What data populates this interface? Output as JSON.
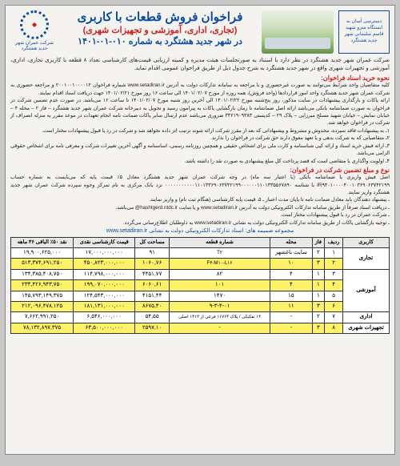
{
  "header": {
    "metro_access": "دسترسی آسان به ایستگاه مترو شهید قاسم سلیمانی شهر جدید هشتگرد",
    "title_main": "فراخوان فروش قطعات با کاربری",
    "title_sub": "(تجاری، اداری، آموزشی و تجهیزات شهری)",
    "title_loc": "در شهر جدید هشتگرد به شماره ۰۱۰-۰۱-۱۴۰۱",
    "logo_text": "شرکت عمران شهر جدید هشتگرد"
  },
  "intro": "شرکت عمران شهر جدید هشتگرد در نظر دارد با استناد به صورتجلسات هیئت مدیره و کمیته ارزیابی قیمت‌های کارشناسی تعداد ۸ قطعه با کاربری تجاری، اداری، آموزشی و تجهیزات شهری واقع در شهر جدید هشتگرد به شرح جدول ذیل از طریق فراخوان عمومی اقدام نماید.",
  "section1_title": "نحوه خرید اسناد فراخوان:",
  "body1": "کلیه متقاضیان واجد شرایط می‌توانند به صورت غیرحضوری و با مراجعه به سامانه تدارکات دولت به آدرس www.setadiran.ir شماره فراخوان ۲۰۰۱۰۰۱۰۰۰۰۱۲ و مراجعه حضوری به شرکت عمران شهر جدید هشتگرد واحد امور قراردادها (واحد فروش)، همه روزه از مورخ ۱۴۰۱/۰۲/۰۷ الی ساعت ۱۶ روز مورخ ۱۴۰۱/۰۲/۲۱ جهت دریافت اسناد اقدام نمایند.",
  "body2": "ارائه پاکات و بارگذاری پیشنهادات در سایت مذکور، روز پنج‌شنبه مورخ ۱۴۰۱/۰۲/۲۲ الی آخرین روز شنبه مورخ ۱۴۰۱/۰۲/۰۷ تا ساعت ۱۶ می‌باشد. در صورت عدم تضمین شرکت در فراخوان به صورت ضمانتنامه بانکی می‌باشد ارائه اصل ضمانتنامه تا زمان بازگشایی پاکات به پیرامون رسید و تحویل به دبیرخانه شرکت عمران شهر جدید هشتگرد – فاز ۲ – محله ۴ – خیابان نمایش – خیابان شهید مسلح میرزایی – پلاک ۲۹ – کدپستی ۳۳۶۱۹۰۹۳۸۳ ضروری می‌باشد عدم ارسال سایر پاکات ضمانت نامه انجام تعهدات در موعد مقرر به منزله انصراف از شرکت در فراخوان خواهد شد.",
  "points": [
    "۱ـ به پیشنهادات فاقد سپرده، مخدوش و مشروط و پیشنهاداتی که بعد از مقرر شرکت ارائه شوند ترتیب اثر داده نخواهد شد و شرکت در رد یا قبول پیشنهادات مختار است.",
    "۲ـ متقاضیانی که به شرکت بدهی و یا تعهد معوق دارند حق شرکت در فراخوان را ندارند.",
    "۳ـ ارائه فیش خرید اسناد و ارائه کپی شناسنامه و کارت ملی برای اشخاص حقیقی و همچنین روزنامه رسمی، اساسنامه و آگهی آخرین تغییرات شرکت و معرفی نامه برای اشخاص حقوقی الزامی می‌باشد.",
    "۴ـ اولویت واگذاری با متقاضی است که قصد پرداخت کل مبلغ پیشنهادی به صورت نقد را داشته باشد."
  ],
  "section2_title": "نوع و مبلغ تضمین شرکت در فراخوان:",
  "body3": "اصل فیش واریزی یا ضمانتنامه بانکی (با اعتبار سه ماه) در وجه شرکت عمران شهر جدید هشتگرد معادل ۵٪ قیمت پایه که می‌بایست به شماره حساب IR۹۴۰۱۰۰۰۰۴۰۰۱۰۳۶۹۰۶۳۷۴۲۱۹۹ با شناسه ۰۰۰۰۰۰۰۰۰۰۰۱۱۰۱۳۳۶۹۰۶۳۷۴۲۱۹۹۰۰۰۰۰۰۱۱۰۱۳۳۵۵۶۷۸۹۰ نزد بانک مرکزی به نام تمرکز وجوه سپرده شرکت عمران شهر جدید هشتگرد واریز نمایند.",
  "notes": [
    "ـ پیشنهاد دهندگان باید معادل ضمانت نامه تا پایان مدت اعتبار ـ ۵. قیمت پایه کارشناسی (هنگام ثبت نام) و واریز نمایند.",
    "ـ دریافت اسناد صرفاً از طریق سامانه تدارکات الکترونیکی دولت به آدرس www.setadiran.ir و یا سایت hashtgerd.ntdc.ir@ می‌باشد.",
    "ـ شرکت عمران در رد یا قبول پیشنهادات مختار است.",
    "ـ توجیه بازگشایی پاکات از طریق سامانه تدارکات الکترونیکی دولت به نشانی www.setadiran.ir به داوطلبان اطلاع‌رسانی می‌گردد."
  ],
  "footer": "مجموعه ضمیمه های: اسناد تدارکات الکترونیکی دولت به نشانی www.setadiran.ir",
  "table": {
    "headers": [
      "کاربری",
      "ردیف",
      "فاز",
      "محله",
      "شماره قطعه",
      "مساحت کل",
      "قیمت کارشناسی نقدی",
      "نقد ۵۰٪ الباقی ۳۶ ماهه"
    ],
    "categories": [
      {
        "name": "تجاری",
        "rowspan": 2
      },
      {
        "name": "آموزشی",
        "rowspan": 4
      },
      {
        "name": "اداری",
        "rowspan": 1
      },
      {
        "name": "تجهیزات شهری",
        "rowspan": 1
      }
    ],
    "rows": [
      {
        "hl": false,
        "cells": [
          "۱",
          "۲",
          "سایت باغشهر",
          "T۲",
          "۹۱",
          "۱۷,۰۰۰,۰۰۰,۰۰۰",
          "۱۹,۹۰۰,۶۲۵,۰۰۰"
        ]
      },
      {
        "hl": true,
        "cells": [
          "۲",
          "۳",
          "۱۰",
          "F۳-M۱۰-L۱۶",
          "۱۰۶۰,۷۶",
          "۴۵۰,۸۲۳,۰۰۰,۰۰۰",
          "۵۱۳,۳۷۴,۶۹۱,۲۵۰"
        ]
      },
      {
        "hl": false,
        "cells": [
          "۳",
          "۱",
          "۴",
          "۸۲",
          "۴۴۵۱,۷۷",
          "۱۱۴,۷۹۸,۰۰۰,۰۰۰",
          "۱۳۴,۳۸۵,۴۰۸,۷۵۰"
        ]
      },
      {
        "hl": true,
        "cells": [
          "۴",
          "۱",
          "۴",
          "۱۰۱",
          "۶۰۶۰,۶۱",
          "۱۹۹,۰۷۰,۰۰۰,۰۰۰",
          "۲۳۳,۴۲۶,۹۴۳,۷۵۰"
        ]
      },
      {
        "hl": false,
        "cells": [
          "۵",
          "۱",
          "۱۵",
          "۱۴۷۰",
          "۴۱۵۱,۴۴",
          "۱۲۴,۵۴۳,۰۰۰,۰۰۰",
          "۱۴۵,۷۹۳,۱۴۹,۳۷۵"
        ]
      },
      {
        "hl": true,
        "cells": [
          "۶",
          "۳",
          "۱۱",
          "۹-۳-۴-۰۱",
          "۸۶۷۵,۳۰",
          "۱۸۱,۱۳۱,۰۰۰,۰۰۰",
          "۲۱۲,۰۹۶,۴۷۸,۱۲۵"
        ]
      },
      {
        "hl": false,
        "cells": [
          "۷",
          "۲",
          "-",
          "۱۴ تفکیکی / پلاک ۱۶۷۶۴ فرعی از ۱۳۱۴ اصلی",
          "۵۴,۵۵",
          "۶,۵۴۶,۰۰۰,۰۰۰",
          "۷,۶۶۲,۹۹۱,۲۵۰"
        ]
      },
      {
        "hl": true,
        "cells": [
          "۸",
          "۳",
          "-",
          "-",
          "۲۵۹۷,۱۰",
          "۶۳,۵۰۰,۰۰۰,۰۰۰",
          "۷۸,۱۳۲,۸۹۷,۳۷۵"
        ]
      }
    ]
  },
  "colors": {
    "blue": "#0a4aa0",
    "red": "#d02020",
    "highlight": "#fff26b",
    "page_bg": "#f5f3f0"
  }
}
